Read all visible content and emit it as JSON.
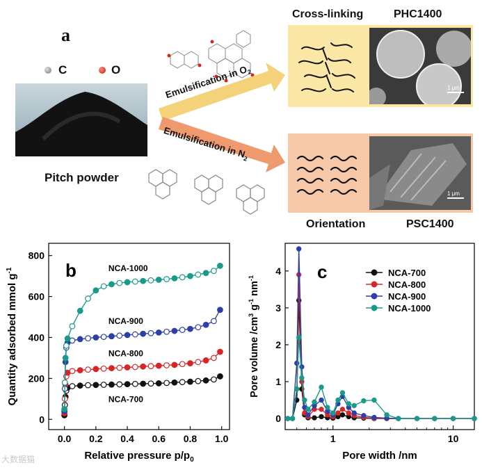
{
  "panel_a": {
    "letter": "a",
    "legend": {
      "c_label": "C",
      "o_label": "O",
      "c_color": "#8a8a8a",
      "o_color": "#d0261c"
    },
    "pitch_label": "Pitch powder",
    "arrow_top_label": "Emulsification in O",
    "arrow_top_sub": "2",
    "arrow_bottom_label": "Emulsification in N",
    "arrow_bottom_sub": "2",
    "top_box": {
      "left_title": "Cross-linking",
      "right_title": "PHC1400",
      "scale": "1 μm",
      "bg": "#fbe8a6"
    },
    "bottom_box": {
      "left_title": "Orientation",
      "right_title": "PSC1400",
      "scale": "1 μm",
      "bg": "#f6c8a8"
    },
    "arrow_top_color": "#f3d27a",
    "arrow_bottom_color": "#ef9a6e"
  },
  "chart_data": [
    {
      "panel": "b",
      "type": "scatter",
      "xlabel": "Relative pressure p/p",
      "xlabel_sub": "0",
      "ylabel": "Quantity adsorbed mmol g",
      "ylabel_sup": "-1",
      "xlim": [
        -0.1,
        1.05
      ],
      "ylim": [
        -50,
        860
      ],
      "xticks": [
        "0.0",
        "0.2",
        "0.4",
        "0.6",
        "0.8",
        "1.0"
      ],
      "yticks": [
        "0",
        "200",
        "400",
        "600",
        "800"
      ],
      "series": [
        {
          "name": "NCA-700",
          "label": "NCA-700",
          "color": "#111111",
          "x": [
            0.0,
            0.003,
            0.007,
            0.012,
            0.02,
            0.05,
            0.1,
            0.15,
            0.2,
            0.25,
            0.3,
            0.35,
            0.4,
            0.45,
            0.5,
            0.55,
            0.6,
            0.65,
            0.7,
            0.75,
            0.8,
            0.85,
            0.9,
            0.95,
            0.99
          ],
          "y": [
            20,
            70,
            110,
            140,
            155,
            162,
            165,
            167,
            168,
            169,
            170,
            171,
            172,
            173,
            174,
            175,
            176,
            178,
            180,
            182,
            184,
            187,
            190,
            195,
            210
          ]
        },
        {
          "name": "NCA-800",
          "label": "NCA-800",
          "color": "#d62728",
          "x": [
            0.0,
            0.003,
            0.007,
            0.012,
            0.02,
            0.05,
            0.1,
            0.15,
            0.2,
            0.25,
            0.3,
            0.35,
            0.4,
            0.45,
            0.5,
            0.55,
            0.6,
            0.65,
            0.7,
            0.75,
            0.8,
            0.85,
            0.9,
            0.95,
            0.99
          ],
          "y": [
            30,
            100,
            170,
            210,
            228,
            236,
            240,
            243,
            246,
            248,
            250,
            252,
            254,
            256,
            258,
            260,
            262,
            264,
            266,
            270,
            274,
            280,
            288,
            300,
            330
          ]
        },
        {
          "name": "NCA-900",
          "label": "NCA-900",
          "color": "#2e3fa8",
          "x": [
            0.0,
            0.003,
            0.007,
            0.012,
            0.02,
            0.05,
            0.1,
            0.15,
            0.2,
            0.25,
            0.3,
            0.35,
            0.4,
            0.45,
            0.5,
            0.55,
            0.6,
            0.65,
            0.7,
            0.75,
            0.8,
            0.85,
            0.9,
            0.95,
            0.99
          ],
          "y": [
            40,
            150,
            280,
            350,
            375,
            385,
            392,
            396,
            400,
            403,
            406,
            409,
            412,
            415,
            418,
            421,
            424,
            428,
            432,
            437,
            442,
            450,
            462,
            480,
            535
          ]
        },
        {
          "name": "NCA-1000",
          "label": "NCA-1000",
          "color": "#1a9a8a",
          "x": [
            0.0,
            0.003,
            0.007,
            0.012,
            0.02,
            0.05,
            0.1,
            0.15,
            0.2,
            0.25,
            0.3,
            0.35,
            0.4,
            0.45,
            0.5,
            0.55,
            0.6,
            0.65,
            0.7,
            0.75,
            0.8,
            0.85,
            0.9,
            0.95,
            0.99
          ],
          "y": [
            50,
            180,
            300,
            360,
            395,
            455,
            530,
            590,
            630,
            650,
            660,
            666,
            670,
            673,
            676,
            679,
            682,
            685,
            689,
            694,
            700,
            707,
            715,
            725,
            750
          ]
        }
      ]
    },
    {
      "panel": "c",
      "type": "line",
      "xscale": "log",
      "xlabel": "Pore width /nm",
      "ylabel": "Pore volume /cm",
      "ylabel_sup1": "3",
      "ylabel_mid": " g",
      "ylabel_sup2": "-1",
      "ylabel_end": " nm",
      "ylabel_sup3": "-1",
      "xlim": [
        0.4,
        15
      ],
      "ylim": [
        -0.3,
        4.75
      ],
      "xticks": [
        "1",
        "10"
      ],
      "yticks": [
        "0",
        "1",
        "2",
        "3",
        "4"
      ],
      "legend_position": "top-right",
      "series": [
        {
          "name": "NCA-700",
          "label": "NCA-700",
          "color": "#111111",
          "x": [
            0.42,
            0.46,
            0.5,
            0.52,
            0.55,
            0.58,
            0.62,
            0.7,
            0.8,
            0.9,
            1.0,
            1.1,
            1.2,
            1.35,
            1.5,
            1.8,
            2.2,
            2.8,
            3.5,
            5,
            7,
            10,
            15
          ],
          "y": [
            0,
            0,
            0.5,
            3.2,
            0.8,
            0.1,
            0.02,
            0.02,
            0.05,
            0.02,
            0.01,
            0.05,
            0.1,
            0.05,
            0.02,
            0.01,
            0,
            0,
            0,
            0,
            0,
            0,
            0
          ]
        },
        {
          "name": "NCA-800",
          "label": "NCA-800",
          "color": "#d62728",
          "x": [
            0.42,
            0.46,
            0.5,
            0.52,
            0.55,
            0.58,
            0.62,
            0.7,
            0.8,
            0.9,
            1.0,
            1.1,
            1.2,
            1.35,
            1.5,
            1.8,
            2.2,
            2.8,
            3.5,
            5,
            7,
            10,
            15
          ],
          "y": [
            0,
            0,
            0.8,
            3.9,
            1.0,
            0.15,
            0.05,
            0.25,
            0.25,
            0.1,
            0.05,
            0.15,
            0.25,
            0.15,
            0.08,
            0.03,
            0.01,
            0,
            0,
            0,
            0,
            0,
            0
          ]
        },
        {
          "name": "NCA-900",
          "label": "NCA-900",
          "color": "#2e3fa8",
          "x": [
            0.42,
            0.46,
            0.5,
            0.52,
            0.55,
            0.58,
            0.62,
            0.7,
            0.8,
            0.9,
            1.0,
            1.1,
            1.2,
            1.35,
            1.5,
            1.8,
            2.2,
            2.8,
            3.5,
            5,
            7,
            10,
            15
          ],
          "y": [
            0,
            0,
            1.5,
            4.6,
            1.4,
            0.3,
            0.1,
            0.35,
            0.5,
            0.2,
            0.1,
            0.4,
            0.6,
            0.3,
            0.15,
            0.08,
            0.03,
            0.01,
            0,
            0,
            0,
            0,
            0
          ]
        },
        {
          "name": "NCA-1000",
          "label": "NCA-1000",
          "color": "#1a9a8a",
          "x": [
            0.42,
            0.46,
            0.5,
            0.52,
            0.55,
            0.58,
            0.62,
            0.7,
            0.8,
            0.9,
            1.0,
            1.1,
            1.2,
            1.35,
            1.5,
            1.8,
            2.2,
            2.8,
            3.5,
            5,
            7,
            10,
            15
          ],
          "y": [
            0,
            0,
            0.8,
            2.2,
            1.1,
            0.5,
            0.25,
            0.45,
            0.85,
            0.3,
            0.15,
            0.5,
            0.7,
            0.4,
            0.35,
            0.48,
            0.5,
            0.1,
            0,
            0,
            0,
            0,
            0
          ]
        }
      ]
    }
  ],
  "panel_b_letter": "b",
  "panel_c_letter": "c",
  "watermark": "大数据猫"
}
